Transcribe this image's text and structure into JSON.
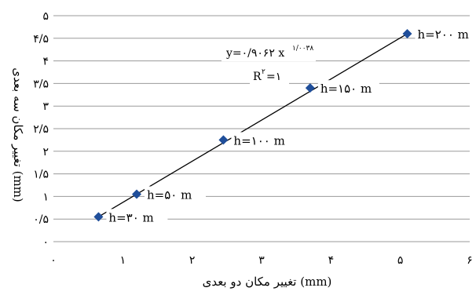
{
  "chart_data": {
    "type": "scatter",
    "title": "",
    "xlabel": "تغییر مکان دو بعدی (mm)",
    "ylabel": "تغییر مکان سه بعدی (mm)",
    "xlim": [
      0,
      6
    ],
    "ylim": [
      0,
      5
    ],
    "xticks": [
      0,
      1,
      2,
      3,
      4,
      5,
      6
    ],
    "yticks": [
      0,
      0.5,
      1,
      1.5,
      2,
      2.5,
      3,
      3.5,
      4,
      4.5,
      5
    ],
    "xtick_labels": [
      "۰",
      "۱",
      "۲",
      "۳",
      "۴",
      "۵",
      "۶"
    ],
    "ytick_labels": [
      "۰",
      "۰/۵",
      "۱",
      "۱/۵",
      "۲",
      "۲/۵",
      "۳",
      "۳/۵",
      "۴",
      "۴/۵",
      "۵"
    ],
    "grid": "horizontal",
    "marker_color": "#1f4e9a",
    "line_color": "#000000",
    "points": [
      {
        "x": 0.65,
        "y": 0.55,
        "label": "h=۳۰ m"
      },
      {
        "x": 1.2,
        "y": 1.05,
        "label": "h=۵۰ m"
      },
      {
        "x": 2.45,
        "y": 2.25,
        "label": "h=۱۰۰ m"
      },
      {
        "x": 3.7,
        "y": 3.4,
        "label": "h=۱۵۰ m"
      },
      {
        "x": 5.1,
        "y": 4.6,
        "label": "h=۲۰۰ m"
      }
    ],
    "fit_line": {
      "x": [
        0.65,
        5.1
      ],
      "y": [
        0.55,
        4.6
      ]
    },
    "annotations": {
      "equation_main": "y=۰/۹۰۶۲ x",
      "equation_exponent": "۱/۰۰۳۸",
      "r_squared_base": "R",
      "r_squared_sup": "۲",
      "r_squared_value": "=۱"
    }
  }
}
